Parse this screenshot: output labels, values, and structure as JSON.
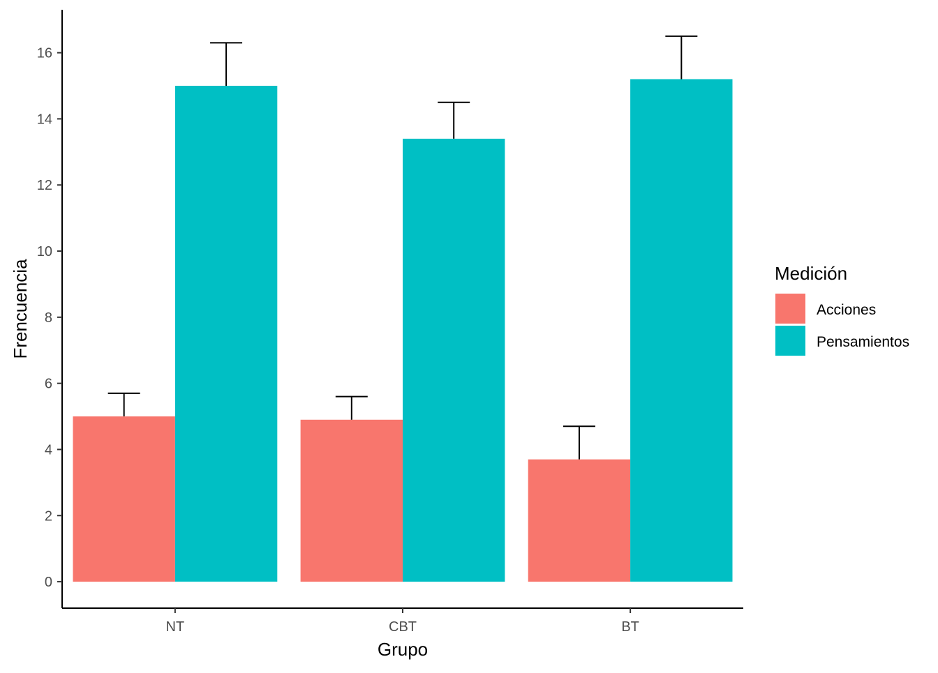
{
  "chart_data": {
    "type": "bar",
    "categories": [
      "NT",
      "CBT",
      "BT"
    ],
    "series": [
      {
        "name": "Acciones",
        "values": [
          5.0,
          4.9,
          3.7
        ],
        "error_upper": [
          5.7,
          5.6,
          4.7
        ],
        "color": "#F8766D"
      },
      {
        "name": "Pensamientos",
        "values": [
          15.0,
          13.4,
          15.2
        ],
        "error_upper": [
          16.3,
          14.5,
          16.5
        ],
        "color": "#00BFC4"
      }
    ],
    "xlabel": "Grupo",
    "ylabel": "Frencuencia",
    "ylim": [
      -0.8,
      17.3
    ],
    "yticks": [
      0,
      2,
      4,
      6,
      8,
      10,
      12,
      14,
      16
    ],
    "grid": false,
    "legend": {
      "title": "Medición",
      "position": "right"
    }
  }
}
